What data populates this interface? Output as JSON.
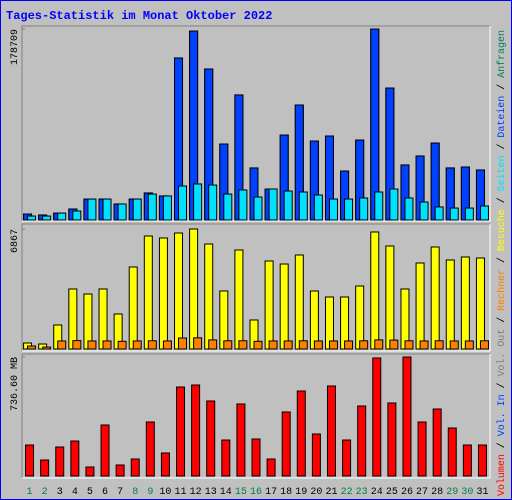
{
  "title": "Tages-Statistik im Monat Oktober 2022",
  "categories": [
    "1",
    "2",
    "3",
    "4",
    "5",
    "6",
    "7",
    "8",
    "9",
    "10",
    "11",
    "12",
    "13",
    "14",
    "15",
    "16",
    "17",
    "18",
    "19",
    "20",
    "21",
    "22",
    "23",
    "24",
    "25",
    "26",
    "27",
    "28",
    "29",
    "30",
    "31"
  ],
  "highlight_categories": [
    "1",
    "2",
    "8",
    "9",
    "15",
    "16",
    "22",
    "23",
    "29",
    "30"
  ],
  "highlight_color": "#008040",
  "chart_data": [
    {
      "type": "bar",
      "ylim": [
        0,
        178709
      ],
      "yticks": [
        178709
      ],
      "series": [
        {
          "name": "Anfragen",
          "color": "#00805c",
          "values": [
            5600,
            4700,
            6500,
            10300,
            19600,
            19600,
            15000,
            19600,
            25300,
            22500,
            151600,
            176800,
            141300,
            71100,
            117000,
            48700,
            29000,
            79500,
            107600,
            73900,
            78600,
            45800,
            74800,
            178709,
            123500,
            51500,
            59900,
            72000,
            48700,
            49600,
            46800
          ]
        },
        {
          "name": "Dateien",
          "color": "#0040ff",
          "values": [
            5600,
            4700,
            6500,
            10300,
            19600,
            19600,
            15000,
            19600,
            25300,
            22500,
            151600,
            176800,
            141300,
            71100,
            117000,
            48700,
            29000,
            79500,
            107600,
            73900,
            78600,
            45800,
            74800,
            178709,
            123500,
            51500,
            59900,
            72000,
            48700,
            49600,
            46800
          ]
        },
        {
          "name": "Seiten",
          "color": "#00e0ff",
          "values": [
            3700,
            3700,
            6500,
            8400,
            19600,
            19600,
            15000,
            19600,
            24300,
            22500,
            31800,
            33700,
            32700,
            24300,
            28100,
            21500,
            29000,
            27100,
            26200,
            23400,
            19600,
            19600,
            20600,
            26200,
            29000,
            20600,
            16800,
            12200,
            11200,
            11200,
            13100
          ]
        }
      ]
    },
    {
      "type": "bar",
      "ylim": [
        0,
        6867
      ],
      "yticks": [
        6867
      ],
      "series": [
        {
          "name": "Besuche",
          "color": "#ffff00",
          "values": [
            343,
            286,
            1373,
            3434,
            3147,
            3434,
            2003,
            4692,
            6466,
            6352,
            6638,
            6867,
            6009,
            3319,
            5665,
            1660,
            5036,
            4864,
            5379,
            3319,
            2976,
            2976,
            3605,
            6695,
            5894,
            3434,
            4921,
            5837,
            5093,
            5265,
            5207
          ]
        },
        {
          "name": "Rechner",
          "color": "#ff8000",
          "values": [
            170,
            110,
            460,
            480,
            460,
            460,
            440,
            460,
            470,
            460,
            630,
            640,
            520,
            470,
            470,
            440,
            460,
            460,
            470,
            460,
            460,
            460,
            470,
            520,
            510,
            470,
            460,
            470,
            460,
            460,
            470
          ]
        }
      ]
    },
    {
      "type": "bar",
      "ylim": [
        0,
        736.6
      ],
      "yticks": [
        {
          "value": 736.6,
          "label": "736.60 MB"
        }
      ],
      "series": [
        {
          "name": "Vol. Out",
          "color": "#808080",
          "values": [
            null,
            null,
            null,
            null,
            null,
            null,
            null,
            null,
            null,
            null,
            null,
            null,
            null,
            null,
            null,
            null,
            null,
            null,
            null,
            null,
            null,
            null,
            null,
            null,
            null,
            null,
            null,
            null,
            null,
            null,
            null
          ]
        },
        {
          "name": "Vol. In",
          "color": "#0040ff",
          "values": [
            null,
            null,
            null,
            null,
            null,
            null,
            null,
            null,
            null,
            null,
            null,
            null,
            null,
            null,
            null,
            null,
            null,
            null,
            null,
            null,
            null,
            null,
            null,
            null,
            null,
            null,
            null,
            null,
            null,
            null,
            null
          ]
        },
        {
          "name": "Volumen",
          "color": "#ff0000",
          "values": [
            191.9,
            99.0,
            179.5,
            216.6,
            55.7,
            315.7,
            68.1,
            105.2,
            334.3,
            142.4,
            550.9,
            563.3,
            464.3,
            222.8,
            445.7,
            229.0,
            105.2,
            396.2,
            526.2,
            260.0,
            557.1,
            222.8,
            433.3,
            730.4,
            451.9,
            736.6,
            334.3,
            414.7,
            297.1,
            191.9,
            191.9
          ]
        }
      ]
    }
  ]
}
